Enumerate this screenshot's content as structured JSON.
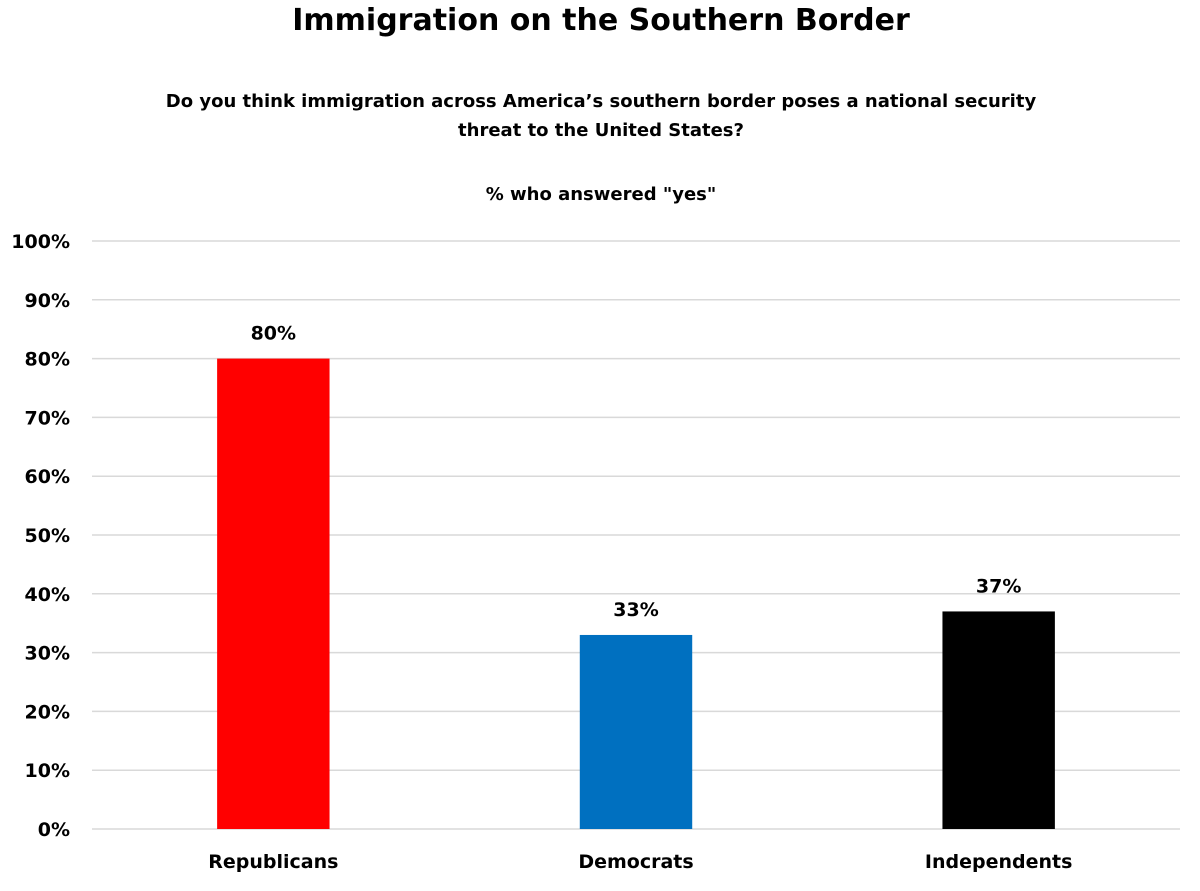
{
  "chart_data": {
    "type": "bar",
    "title": "Immigration on the Southern Border",
    "subtitle_lines": [
      "Do you think immigration across America’s southern border poses a national security",
      "threat to the United States?"
    ],
    "measure_label": "% who answered \"yes\"",
    "categories": [
      "Republicans",
      "Democrats",
      "Independents"
    ],
    "values": [
      80,
      33,
      37
    ],
    "data_labels": [
      "80%",
      "33%",
      "37%"
    ],
    "colors": [
      "#ff0000",
      "#0070c0",
      "#000000"
    ],
    "ylim": [
      0,
      100
    ],
    "yticks": [
      0,
      10,
      20,
      30,
      40,
      50,
      60,
      70,
      80,
      90,
      100
    ],
    "ytick_labels": [
      "0%",
      "10%",
      "20%",
      "30%",
      "40%",
      "50%",
      "60%",
      "70%",
      "80%",
      "90%",
      "100%"
    ],
    "grid": true,
    "gridline_color": "#d9d9d9",
    "legend": "none"
  }
}
